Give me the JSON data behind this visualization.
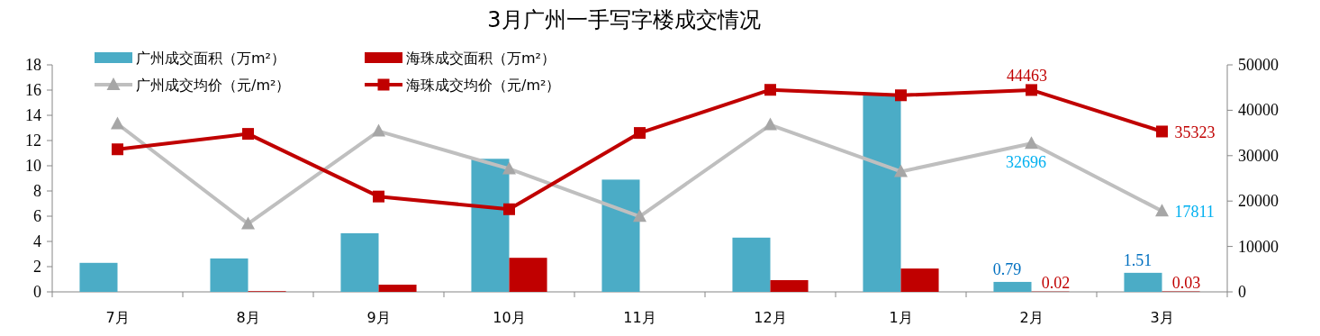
{
  "chart_data": {
    "type": "bar",
    "title": "3月广州一手写字楼成交情况",
    "categories": [
      "7月",
      "8月",
      "9月",
      "10月",
      "11月",
      "12月",
      "1月",
      "2月",
      "3月"
    ],
    "series": [
      {
        "name": "广州成交面积（万m²）",
        "color": "#4bacc6",
        "values": [
          2.3,
          2.65,
          4.65,
          10.55,
          8.9,
          4.3,
          15.7,
          0.79,
          1.51
        ],
        "value_labels": [
          null,
          null,
          null,
          null,
          null,
          null,
          null,
          "0.79",
          "1.51"
        ]
      },
      {
        "name": "海珠成交面积（万m²）",
        "color": "#c00000",
        "values": [
          null,
          0.05,
          0.57,
          2.7,
          null,
          0.93,
          1.85,
          0.02,
          0.03
        ],
        "value_labels": [
          null,
          null,
          null,
          null,
          null,
          null,
          null,
          "0.02",
          "0.03"
        ]
      },
      {
        "name": "广州成交均价（元/m²）",
        "type": "line",
        "axis": "y2",
        "marker": "triangle",
        "color": "#bfbfbf",
        "values": [
          37000,
          15000,
          35400,
          27100,
          16600,
          36800,
          26500,
          32696,
          17811
        ],
        "value_labels": [
          null,
          null,
          null,
          null,
          null,
          null,
          null,
          "32696",
          "17811"
        ]
      },
      {
        "name": "海珠成交均价（元/m²）",
        "type": "line",
        "axis": "y2",
        "marker": "square",
        "color": "#c00000",
        "values": [
          31400,
          34800,
          21000,
          18200,
          35000,
          44500,
          43300,
          44463,
          35323
        ],
        "value_labels": [
          null,
          null,
          null,
          null,
          null,
          null,
          null,
          "44463",
          "35323"
        ]
      }
    ],
    "ylim": [
      0,
      18
    ],
    "yticks": [
      0,
      2,
      4,
      6,
      8,
      10,
      12,
      14,
      16,
      18
    ],
    "y2lim": [
      0,
      50000
    ],
    "y2ticks": [
      0,
      10000,
      20000,
      30000,
      40000,
      50000
    ],
    "grid": false,
    "legend": "top left"
  }
}
